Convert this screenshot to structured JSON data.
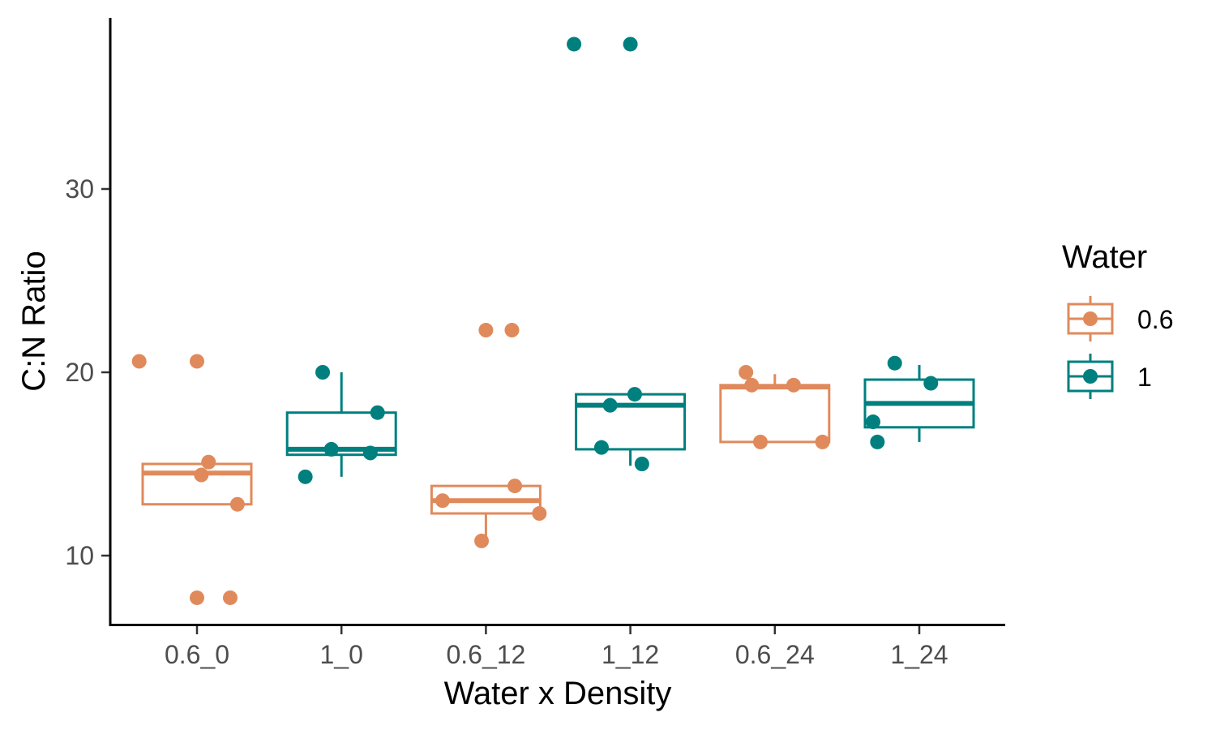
{
  "chart_data": {
    "type": "box",
    "xlabel": "Water x Density",
    "ylabel": "C:N Ratio",
    "y_ticks": [
      10,
      20,
      30
    ],
    "ylim": [
      6.2,
      40.3
    ],
    "legend": {
      "title": "Water",
      "position": "right",
      "entries": [
        {
          "label": "0.6",
          "color": "#E08A5C"
        },
        {
          "label": "1",
          "color": "#007F7F"
        }
      ]
    },
    "groups": [
      {
        "label": "0.6_0",
        "water": "0.6",
        "q1": 12.8,
        "median": 14.5,
        "q3": 15.0,
        "whisker_low": 12.8,
        "whisker_high": 15.0,
        "points": [
          {
            "x": 0.6,
            "y": 20.6
          },
          {
            "x": 1.0,
            "y": 20.6
          },
          {
            "x": 1.08,
            "y": 15.1
          },
          {
            "x": 1.03,
            "y": 14.4
          },
          {
            "x": 1.28,
            "y": 12.8
          },
          {
            "x": 1.0,
            "y": 7.7
          },
          {
            "x": 1.23,
            "y": 7.7
          }
        ]
      },
      {
        "label": "1_0",
        "water": "1",
        "q1": 15.5,
        "median": 15.8,
        "q3": 17.8,
        "whisker_low": 14.3,
        "whisker_high": 20.0,
        "points": [
          {
            "x": 1.87,
            "y": 20.0
          },
          {
            "x": 1.93,
            "y": 15.8
          },
          {
            "x": 2.25,
            "y": 17.8
          },
          {
            "x": 2.2,
            "y": 15.6
          },
          {
            "x": 1.75,
            "y": 14.3
          }
        ]
      },
      {
        "label": "0.6_12",
        "water": "0.6",
        "q1": 12.3,
        "median": 13.0,
        "q3": 13.8,
        "whisker_low": 10.8,
        "whisker_high": 13.8,
        "points": [
          {
            "x": 3.0,
            "y": 22.3
          },
          {
            "x": 3.18,
            "y": 22.3
          },
          {
            "x": 3.2,
            "y": 13.8
          },
          {
            "x": 2.7,
            "y": 13.0
          },
          {
            "x": 3.37,
            "y": 12.3
          },
          {
            "x": 2.97,
            "y": 10.8
          }
        ]
      },
      {
        "label": "1_12",
        "water": "1",
        "q1": 15.8,
        "median": 18.2,
        "q3": 18.8,
        "whisker_low": 14.9,
        "whisker_high": 18.8,
        "points": [
          {
            "x": 3.61,
            "y": 37.9
          },
          {
            "x": 4.0,
            "y": 37.9
          },
          {
            "x": 4.03,
            "y": 18.8
          },
          {
            "x": 3.86,
            "y": 18.2
          },
          {
            "x": 3.8,
            "y": 15.9
          },
          {
            "x": 4.08,
            "y": 15.0
          }
        ]
      },
      {
        "label": "0.6_24",
        "water": "0.6",
        "q1": 16.2,
        "median": 19.2,
        "q3": 19.3,
        "whisker_low": 16.2,
        "whisker_high": 19.9,
        "points": [
          {
            "x": 4.8,
            "y": 20.0
          },
          {
            "x": 4.84,
            "y": 19.3
          },
          {
            "x": 5.13,
            "y": 19.3
          },
          {
            "x": 4.9,
            "y": 16.2
          },
          {
            "x": 5.33,
            "y": 16.2
          }
        ]
      },
      {
        "label": "1_24",
        "water": "1",
        "q1": 17.0,
        "median": 18.3,
        "q3": 19.6,
        "whisker_low": 16.2,
        "whisker_high": 20.4,
        "points": [
          {
            "x": 5.83,
            "y": 20.5
          },
          {
            "x": 6.08,
            "y": 19.4
          },
          {
            "x": 5.68,
            "y": 17.3
          },
          {
            "x": 5.71,
            "y": 16.2
          }
        ]
      }
    ]
  }
}
